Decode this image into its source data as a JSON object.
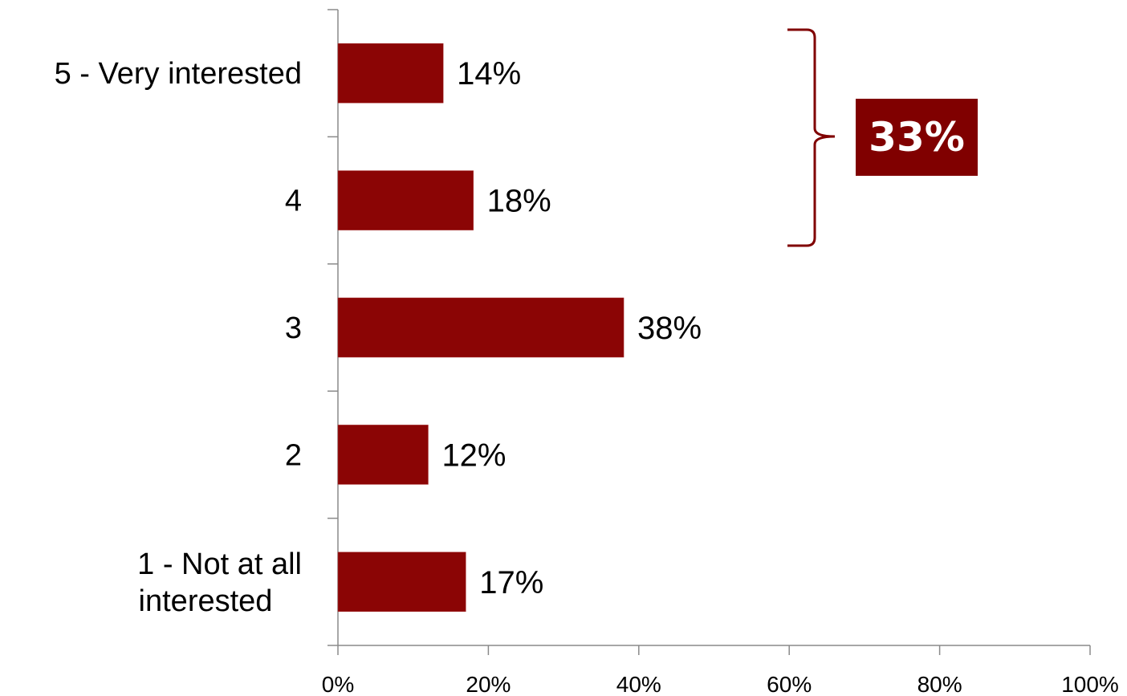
{
  "chart_data": {
    "type": "bar",
    "orientation": "horizontal",
    "categories": [
      "5 - Very interested",
      "4",
      "3",
      "2",
      "1 - Not at all interested"
    ],
    "category_lines": [
      [
        "5 - Very interested"
      ],
      [
        "4"
      ],
      [
        "3"
      ],
      [
        "2"
      ],
      [
        "1 - Not at all",
        "interested"
      ]
    ],
    "values": [
      14,
      18,
      38,
      12,
      17
    ],
    "data_labels": [
      "14%",
      "18%",
      "38%",
      "12%",
      "17%"
    ],
    "x_ticks": [
      0,
      20,
      40,
      60,
      80,
      100
    ],
    "x_tick_labels": [
      "0%",
      "20%",
      "40%",
      "60%",
      "80%",
      "100%"
    ],
    "xlim": [
      0,
      100
    ],
    "grid": false,
    "legend": "none",
    "bar_color": "#8B0505",
    "callout": {
      "text": "33%",
      "brackets_categories": [
        "5 - Very interested",
        "4"
      ],
      "color": "#800000"
    }
  }
}
